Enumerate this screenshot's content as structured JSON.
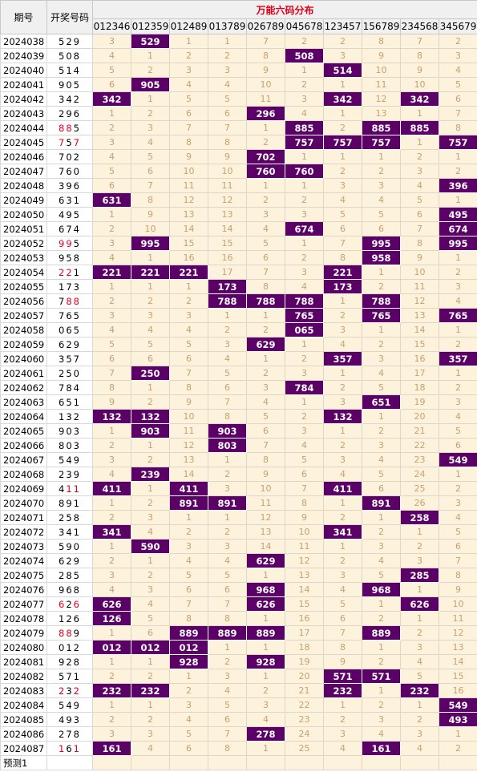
{
  "header": {
    "period_label": "期号",
    "draw_label": "开奖号码",
    "title": "万能六码分布",
    "combos": [
      "012346",
      "012359",
      "012489",
      "013789",
      "026789",
      "045678",
      "123457",
      "156789",
      "234568",
      "345679"
    ]
  },
  "rows": [
    {
      "period": "2024038",
      "draw": "529",
      "red": [],
      "cells": [
        "3",
        "529",
        "1",
        "1",
        "7",
        "2",
        "2",
        "8",
        "7",
        "2"
      ]
    },
    {
      "period": "2024039",
      "draw": "508",
      "red": [],
      "cells": [
        "4",
        "1",
        "2",
        "2",
        "8",
        "508",
        "3",
        "9",
        "8",
        "3"
      ]
    },
    {
      "period": "2024040",
      "draw": "514",
      "red": [],
      "cells": [
        "5",
        "2",
        "3",
        "3",
        "9",
        "1",
        "514",
        "10",
        "9",
        "4"
      ]
    },
    {
      "period": "2024041",
      "draw": "905",
      "red": [],
      "cells": [
        "6",
        "905",
        "4",
        "4",
        "10",
        "2",
        "1",
        "11",
        "10",
        "5"
      ]
    },
    {
      "period": "2024042",
      "draw": "342",
      "red": [],
      "cells": [
        "342",
        "1",
        "5",
        "5",
        "11",
        "3",
        "342",
        "12",
        "342",
        "6"
      ]
    },
    {
      "period": "2024043",
      "draw": "296",
      "red": [],
      "cells": [
        "1",
        "2",
        "6",
        "6",
        "296",
        "4",
        "1",
        "13",
        "1",
        "7"
      ]
    },
    {
      "period": "2024044",
      "draw": "885",
      "red": [
        0,
        1
      ],
      "cells": [
        "2",
        "3",
        "7",
        "7",
        "1",
        "885",
        "2",
        "885",
        "885",
        "8"
      ]
    },
    {
      "period": "2024045",
      "draw": "757",
      "red": [
        0,
        2
      ],
      "cells": [
        "3",
        "4",
        "8",
        "8",
        "2",
        "757",
        "757",
        "757",
        "1",
        "757"
      ]
    },
    {
      "period": "2024046",
      "draw": "702",
      "red": [],
      "cells": [
        "4",
        "5",
        "9",
        "9",
        "702",
        "1",
        "1",
        "1",
        "2",
        "1"
      ]
    },
    {
      "period": "2024047",
      "draw": "760",
      "red": [],
      "cells": [
        "5",
        "6",
        "10",
        "10",
        "760",
        "760",
        "2",
        "2",
        "3",
        "2"
      ]
    },
    {
      "period": "2024048",
      "draw": "396",
      "red": [],
      "cells": [
        "6",
        "7",
        "11",
        "11",
        "1",
        "1",
        "3",
        "3",
        "4",
        "396"
      ]
    },
    {
      "period": "2024049",
      "draw": "631",
      "red": [],
      "cells": [
        "631",
        "8",
        "12",
        "12",
        "2",
        "2",
        "4",
        "4",
        "5",
        "1"
      ]
    },
    {
      "period": "2024050",
      "draw": "495",
      "red": [],
      "cells": [
        "1",
        "9",
        "13",
        "13",
        "3",
        "3",
        "5",
        "5",
        "6",
        "495"
      ]
    },
    {
      "period": "2024051",
      "draw": "674",
      "red": [],
      "cells": [
        "2",
        "10",
        "14",
        "14",
        "4",
        "674",
        "6",
        "6",
        "7",
        "674"
      ]
    },
    {
      "period": "2024052",
      "draw": "995",
      "red": [
        0,
        1
      ],
      "cells": [
        "3",
        "995",
        "15",
        "15",
        "5",
        "1",
        "7",
        "995",
        "8",
        "995"
      ]
    },
    {
      "period": "2024053",
      "draw": "958",
      "red": [],
      "cells": [
        "4",
        "1",
        "16",
        "16",
        "6",
        "2",
        "8",
        "958",
        "9",
        "1"
      ]
    },
    {
      "period": "2024054",
      "draw": "221",
      "red": [
        0,
        1
      ],
      "cells": [
        "221",
        "221",
        "221",
        "17",
        "7",
        "3",
        "221",
        "1",
        "10",
        "2"
      ]
    },
    {
      "period": "2024055",
      "draw": "173",
      "red": [],
      "cells": [
        "1",
        "1",
        "1",
        "173",
        "8",
        "4",
        "173",
        "2",
        "11",
        "3"
      ]
    },
    {
      "period": "2024056",
      "draw": "788",
      "red": [
        1,
        2
      ],
      "cells": [
        "2",
        "2",
        "2",
        "788",
        "788",
        "788",
        "1",
        "788",
        "12",
        "4"
      ]
    },
    {
      "period": "2024057",
      "draw": "765",
      "red": [],
      "cells": [
        "3",
        "3",
        "3",
        "1",
        "1",
        "765",
        "2",
        "765",
        "13",
        "765"
      ]
    },
    {
      "period": "2024058",
      "draw": "065",
      "red": [],
      "cells": [
        "4",
        "4",
        "4",
        "2",
        "2",
        "065",
        "3",
        "1",
        "14",
        "1"
      ]
    },
    {
      "period": "2024059",
      "draw": "629",
      "red": [],
      "cells": [
        "5",
        "5",
        "5",
        "3",
        "629",
        "1",
        "4",
        "2",
        "15",
        "2"
      ]
    },
    {
      "period": "2024060",
      "draw": "357",
      "red": [],
      "cells": [
        "6",
        "6",
        "6",
        "4",
        "1",
        "2",
        "357",
        "3",
        "16",
        "357"
      ]
    },
    {
      "period": "2024061",
      "draw": "250",
      "red": [],
      "cells": [
        "7",
        "250",
        "7",
        "5",
        "2",
        "3",
        "1",
        "4",
        "17",
        "1"
      ]
    },
    {
      "period": "2024062",
      "draw": "784",
      "red": [],
      "cells": [
        "8",
        "1",
        "8",
        "6",
        "3",
        "784",
        "2",
        "5",
        "18",
        "2"
      ]
    },
    {
      "period": "2024063",
      "draw": "651",
      "red": [],
      "cells": [
        "9",
        "2",
        "9",
        "7",
        "4",
        "1",
        "3",
        "651",
        "19",
        "3"
      ]
    },
    {
      "period": "2024064",
      "draw": "132",
      "red": [],
      "cells": [
        "132",
        "132",
        "10",
        "8",
        "5",
        "2",
        "132",
        "1",
        "20",
        "4"
      ]
    },
    {
      "period": "2024065",
      "draw": "903",
      "red": [],
      "cells": [
        "1",
        "903",
        "11",
        "903",
        "6",
        "3",
        "1",
        "2",
        "21",
        "5"
      ]
    },
    {
      "period": "2024066",
      "draw": "803",
      "red": [],
      "cells": [
        "2",
        "1",
        "12",
        "803",
        "7",
        "4",
        "2",
        "3",
        "22",
        "6"
      ]
    },
    {
      "period": "2024067",
      "draw": "549",
      "red": [],
      "cells": [
        "3",
        "2",
        "13",
        "1",
        "8",
        "5",
        "3",
        "4",
        "23",
        "549"
      ]
    },
    {
      "period": "2024068",
      "draw": "239",
      "red": [],
      "cells": [
        "4",
        "239",
        "14",
        "2",
        "9",
        "6",
        "4",
        "5",
        "24",
        "1"
      ]
    },
    {
      "period": "2024069",
      "draw": "411",
      "red": [
        1,
        2
      ],
      "cells": [
        "411",
        "1",
        "411",
        "3",
        "10",
        "7",
        "411",
        "6",
        "25",
        "2"
      ]
    },
    {
      "period": "2024070",
      "draw": "891",
      "red": [],
      "cells": [
        "1",
        "2",
        "891",
        "891",
        "11",
        "8",
        "1",
        "891",
        "26",
        "3"
      ]
    },
    {
      "period": "2024071",
      "draw": "258",
      "red": [],
      "cells": [
        "2",
        "3",
        "1",
        "1",
        "12",
        "9",
        "2",
        "1",
        "258",
        "4"
      ]
    },
    {
      "period": "2024072",
      "draw": "341",
      "red": [],
      "cells": [
        "341",
        "4",
        "2",
        "2",
        "13",
        "10",
        "341",
        "2",
        "1",
        "5"
      ]
    },
    {
      "period": "2024073",
      "draw": "590",
      "red": [],
      "cells": [
        "1",
        "590",
        "3",
        "3",
        "14",
        "11",
        "1",
        "3",
        "2",
        "6"
      ]
    },
    {
      "period": "2024074",
      "draw": "629",
      "red": [],
      "cells": [
        "2",
        "1",
        "4",
        "4",
        "629",
        "12",
        "2",
        "4",
        "3",
        "7"
      ]
    },
    {
      "period": "2024075",
      "draw": "285",
      "red": [],
      "cells": [
        "3",
        "2",
        "5",
        "5",
        "1",
        "13",
        "3",
        "5",
        "285",
        "8"
      ]
    },
    {
      "period": "2024076",
      "draw": "968",
      "red": [],
      "cells": [
        "4",
        "3",
        "6",
        "6",
        "968",
        "14",
        "4",
        "968",
        "1",
        "9"
      ]
    },
    {
      "period": "2024077",
      "draw": "626",
      "red": [
        0,
        2
      ],
      "cells": [
        "626",
        "4",
        "7",
        "7",
        "626",
        "15",
        "5",
        "1",
        "626",
        "10"
      ]
    },
    {
      "period": "2024078",
      "draw": "126",
      "red": [],
      "cells": [
        "126",
        "5",
        "8",
        "8",
        "1",
        "16",
        "6",
        "2",
        "1",
        "11"
      ]
    },
    {
      "period": "2024079",
      "draw": "889",
      "red": [
        0,
        1
      ],
      "cells": [
        "1",
        "6",
        "889",
        "889",
        "889",
        "17",
        "7",
        "889",
        "2",
        "12"
      ]
    },
    {
      "period": "2024080",
      "draw": "012",
      "red": [],
      "cells": [
        "012",
        "012",
        "012",
        "1",
        "1",
        "18",
        "8",
        "1",
        "3",
        "13"
      ]
    },
    {
      "period": "2024081",
      "draw": "928",
      "red": [],
      "cells": [
        "1",
        "1",
        "928",
        "2",
        "928",
        "19",
        "9",
        "2",
        "4",
        "14"
      ]
    },
    {
      "period": "2024082",
      "draw": "571",
      "red": [],
      "cells": [
        "2",
        "2",
        "1",
        "3",
        "1",
        "20",
        "571",
        "571",
        "5",
        "15"
      ]
    },
    {
      "period": "2024083",
      "draw": "232",
      "red": [
        0,
        2
      ],
      "cells": [
        "232",
        "232",
        "2",
        "4",
        "2",
        "21",
        "232",
        "1",
        "232",
        "16"
      ]
    },
    {
      "period": "2024084",
      "draw": "549",
      "red": [],
      "cells": [
        "1",
        "1",
        "3",
        "5",
        "3",
        "22",
        "1",
        "2",
        "1",
        "549"
      ]
    },
    {
      "period": "2024085",
      "draw": "493",
      "red": [],
      "cells": [
        "2",
        "2",
        "4",
        "6",
        "4",
        "23",
        "2",
        "3",
        "2",
        "493"
      ]
    },
    {
      "period": "2024086",
      "draw": "278",
      "red": [],
      "cells": [
        "3",
        "3",
        "5",
        "7",
        "278",
        "24",
        "3",
        "4",
        "3",
        "1"
      ]
    },
    {
      "period": "2024087",
      "draw": "161",
      "red": [
        0,
        2
      ],
      "cells": [
        "161",
        "4",
        "6",
        "8",
        "1",
        "25",
        "4",
        "161",
        "4",
        "2"
      ]
    }
  ],
  "prediction": {
    "label": "预测1"
  },
  "colors": {
    "hit_bg": "#5b0066",
    "miss_bg": "#fdf2dc",
    "miss_text": "#c9a070",
    "red_digit": "#e0001a",
    "title": "#e0001a"
  }
}
